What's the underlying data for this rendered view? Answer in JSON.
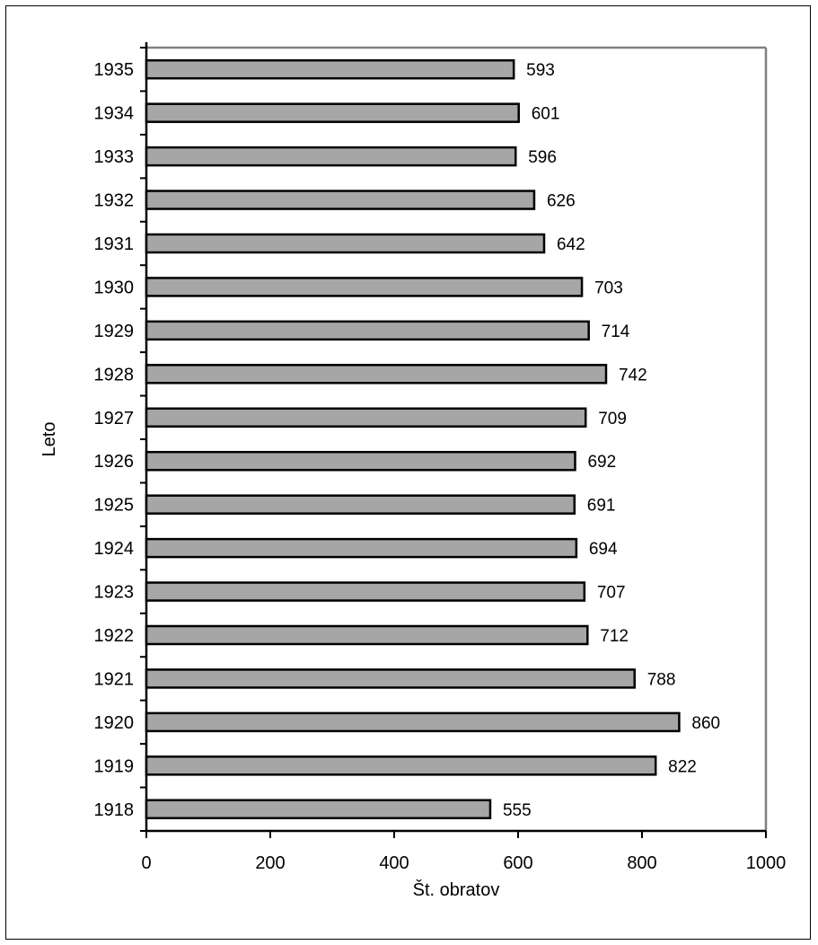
{
  "chart_data": {
    "type": "bar",
    "orientation": "horizontal",
    "categories": [
      "1918",
      "1919",
      "1920",
      "1921",
      "1922",
      "1923",
      "1924",
      "1925",
      "1926",
      "1927",
      "1928",
      "1929",
      "1930",
      "1931",
      "1932",
      "1933",
      "1934",
      "1935"
    ],
    "values": [
      555,
      822,
      860,
      788,
      712,
      707,
      694,
      691,
      692,
      709,
      742,
      714,
      703,
      642,
      626,
      596,
      601,
      593
    ],
    "xlabel": "Št. obratov",
    "ylabel": "Leto",
    "xlim": [
      0,
      1000
    ],
    "xticks": [
      0,
      200,
      400,
      600,
      800,
      1000
    ],
    "grid": false,
    "legend": "none",
    "colors": {
      "bar_fill": "#a6a6a6",
      "bar_stroke": "#000000",
      "plot_border": "#808080"
    }
  }
}
